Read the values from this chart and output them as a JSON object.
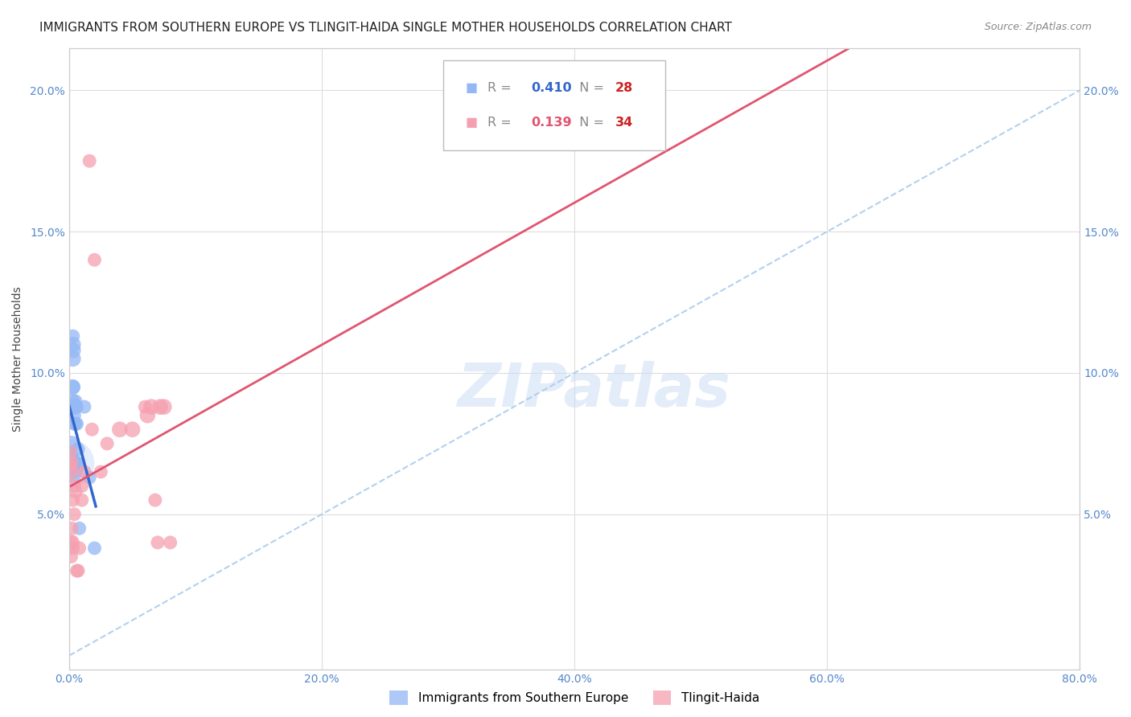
{
  "title": "IMMIGRANTS FROM SOUTHERN EUROPE VS TLINGIT-HAIDA SINGLE MOTHER HOUSEHOLDS CORRELATION CHART",
  "source": "Source: ZipAtlas.com",
  "ylabel": "Single Mother Households",
  "xlim": [
    0,
    0.8
  ],
  "ylim": [
    -0.005,
    0.215
  ],
  "xtick_vals": [
    0.0,
    0.2,
    0.4,
    0.6,
    0.8
  ],
  "xtick_labels": [
    "0.0%",
    "20.0%",
    "40.0%",
    "60.0%",
    "80.0%"
  ],
  "ytick_vals": [
    0.05,
    0.1,
    0.15,
    0.2
  ],
  "ytick_labels": [
    "5.0%",
    "10.0%",
    "15.0%",
    "20.0%"
  ],
  "title_fontsize": 11,
  "ylabel_fontsize": 10,
  "tick_fontsize": 10,
  "blue_color": "#93b8f5",
  "blue_line_color": "#3366cc",
  "pink_color": "#f5a0b0",
  "pink_line_color": "#e05570",
  "legend_R_blue": "0.410",
  "legend_N_blue": "28",
  "legend_R_pink": "0.139",
  "legend_N_pink": "34",
  "blue_x": [
    0.0008,
    0.001,
    0.0012,
    0.0015,
    0.0015,
    0.002,
    0.002,
    0.002,
    0.0022,
    0.0025,
    0.003,
    0.003,
    0.003,
    0.003,
    0.0035,
    0.004,
    0.004,
    0.004,
    0.005,
    0.005,
    0.006,
    0.006,
    0.007,
    0.007,
    0.008,
    0.012,
    0.016,
    0.02
  ],
  "blue_y": [
    0.067,
    0.072,
    0.068,
    0.075,
    0.07,
    0.067,
    0.065,
    0.068,
    0.09,
    0.095,
    0.105,
    0.11,
    0.108,
    0.113,
    0.095,
    0.088,
    0.085,
    0.082,
    0.09,
    0.082,
    0.088,
    0.082,
    0.073,
    0.068,
    0.045,
    0.088,
    0.063,
    0.038
  ],
  "blue_s": [
    80,
    60,
    60,
    80,
    80,
    200,
    150,
    120,
    80,
    80,
    80,
    80,
    80,
    60,
    60,
    80,
    60,
    60,
    60,
    60,
    60,
    60,
    60,
    60,
    60,
    60,
    60,
    60
  ],
  "pink_x": [
    0.0005,
    0.0008,
    0.001,
    0.001,
    0.0015,
    0.0015,
    0.002,
    0.002,
    0.003,
    0.003,
    0.004,
    0.004,
    0.005,
    0.006,
    0.007,
    0.008,
    0.01,
    0.01,
    0.012,
    0.016,
    0.018,
    0.02,
    0.025,
    0.03,
    0.04,
    0.05,
    0.06,
    0.062,
    0.065,
    0.068,
    0.07,
    0.072,
    0.075,
    0.08
  ],
  "pink_y": [
    0.068,
    0.072,
    0.068,
    0.065,
    0.04,
    0.035,
    0.045,
    0.04,
    0.055,
    0.038,
    0.06,
    0.05,
    0.058,
    0.03,
    0.03,
    0.038,
    0.06,
    0.055,
    0.065,
    0.175,
    0.08,
    0.14,
    0.065,
    0.075,
    0.08,
    0.08,
    0.088,
    0.085,
    0.088,
    0.055,
    0.04,
    0.088,
    0.088,
    0.04
  ],
  "pink_s": [
    80,
    60,
    80,
    80,
    60,
    60,
    60,
    80,
    60,
    60,
    60,
    60,
    60,
    60,
    60,
    60,
    60,
    60,
    60,
    60,
    60,
    60,
    60,
    60,
    80,
    80,
    60,
    80,
    80,
    60,
    60,
    80,
    80,
    60
  ],
  "watermark": "ZIPatlas",
  "bg_color": "#ffffff",
  "grid_color": "#dddddd",
  "dashed_line_color": "#aaccee",
  "tick_color": "#5588cc",
  "title_color": "#222222",
  "source_color": "#888888",
  "ylabel_color": "#444444"
}
